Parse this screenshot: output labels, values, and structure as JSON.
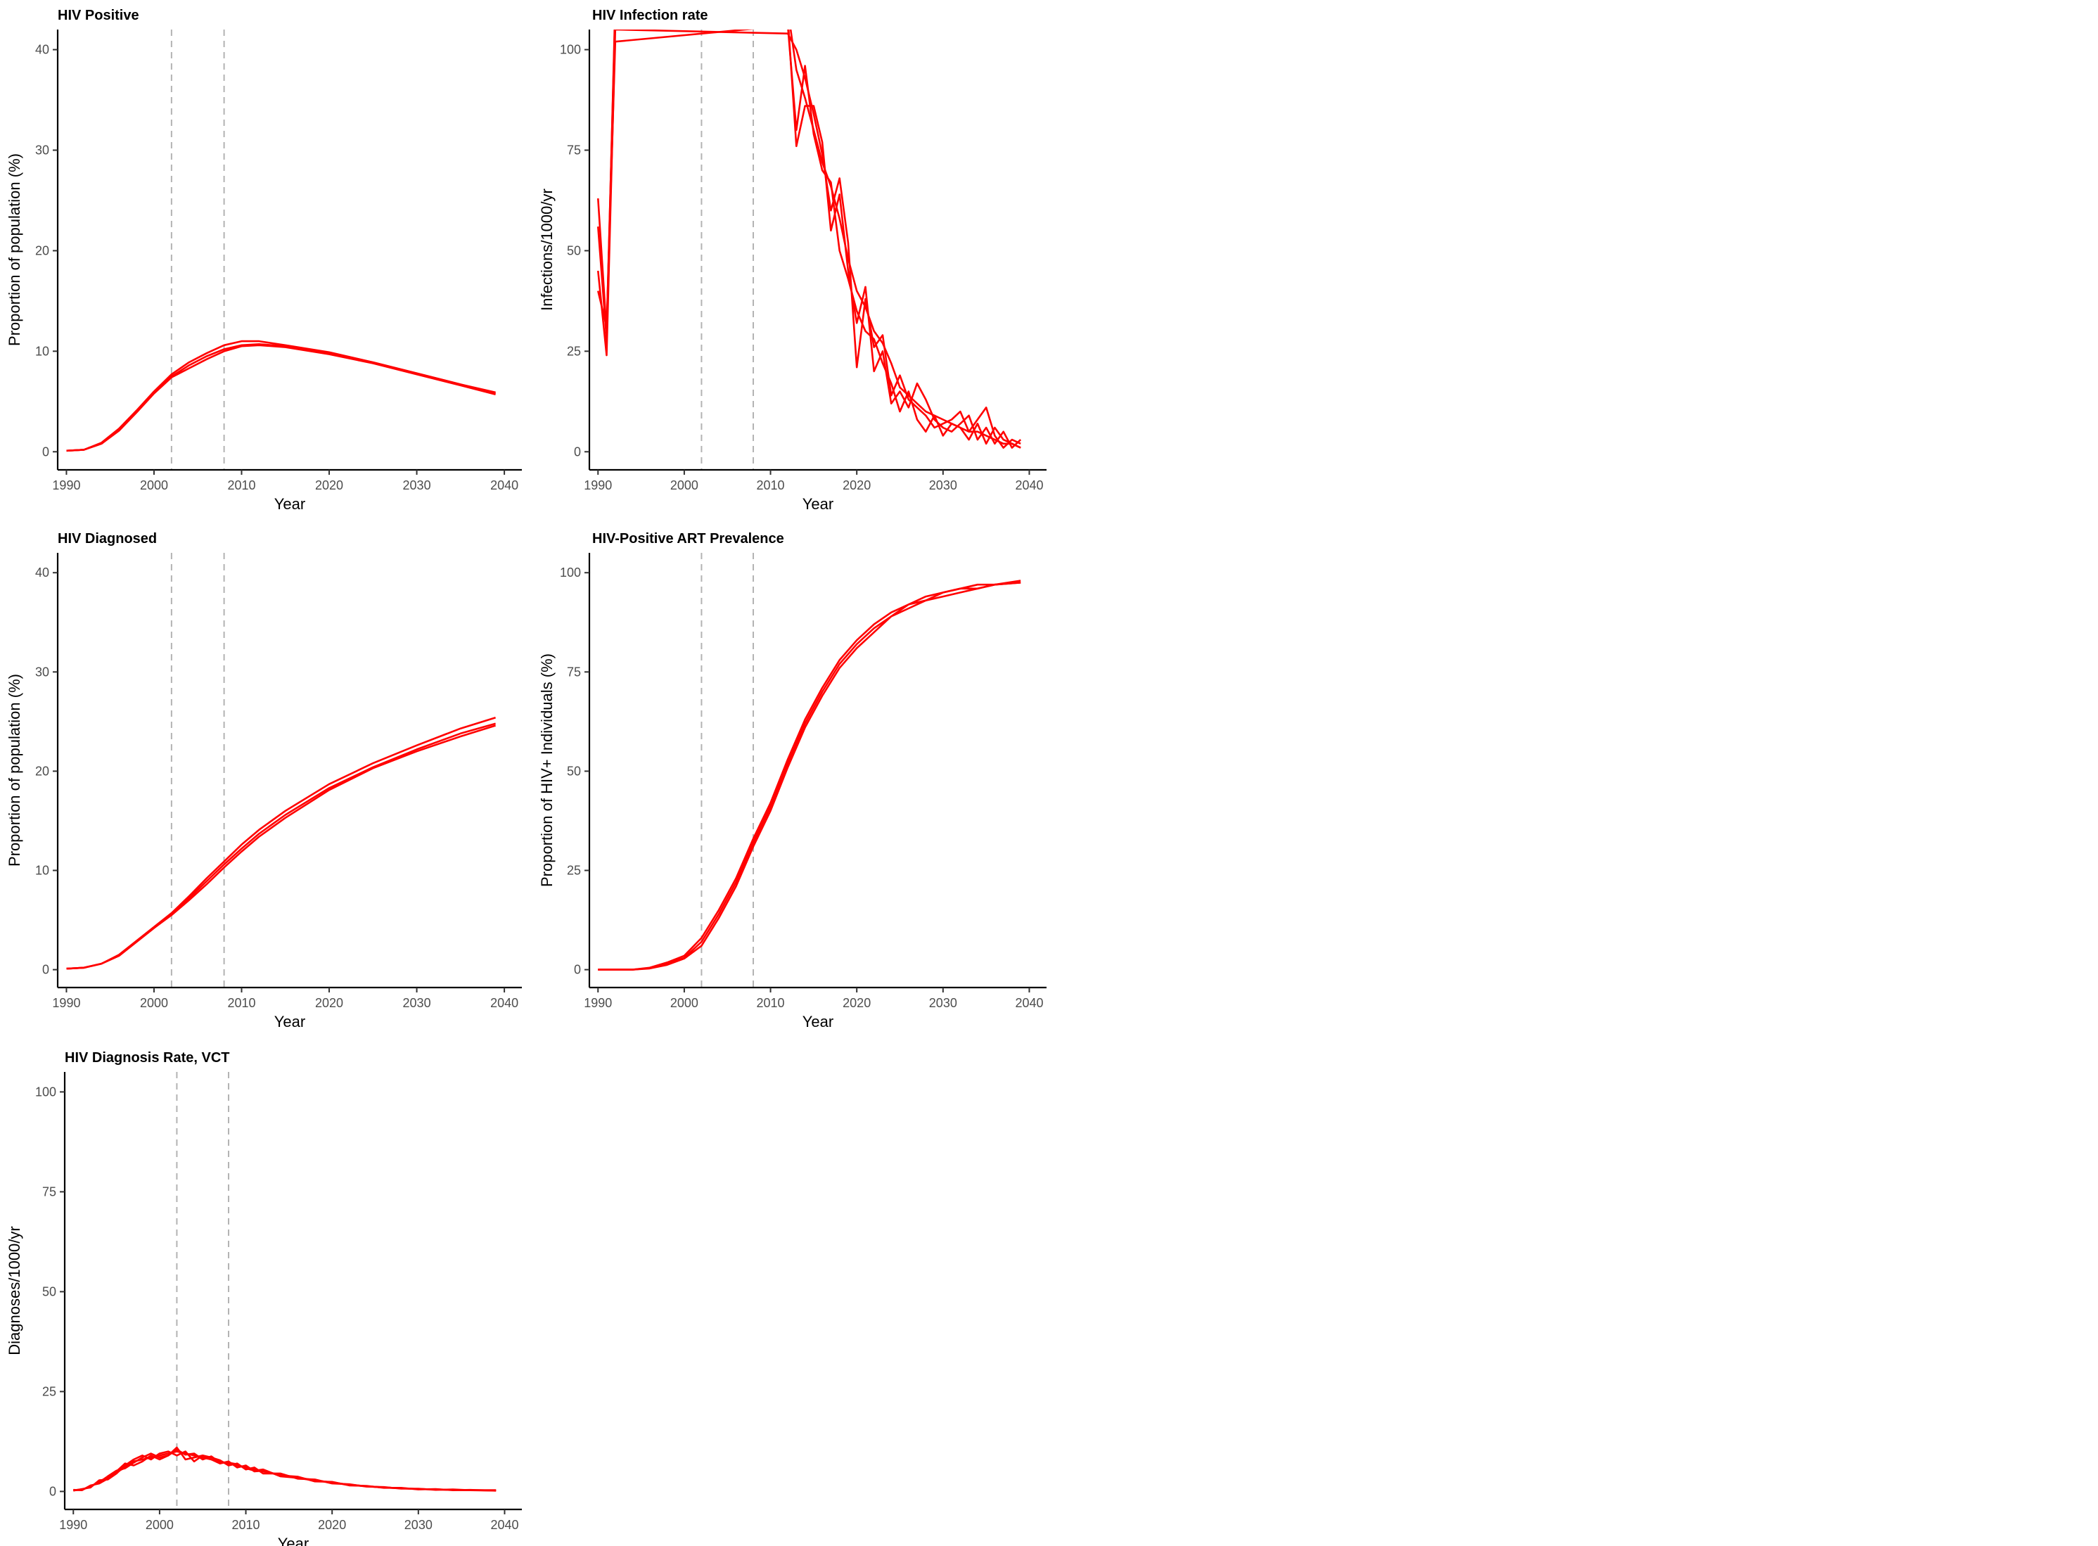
{
  "chart_data": [
    {
      "type": "line",
      "title": "HIV Positive",
      "xlabel": "Year",
      "ylabel": "Proportion of population (%)",
      "xlim": [
        1989,
        2042
      ],
      "ylim": [
        -1.8,
        42
      ],
      "xticks": [
        1990,
        2000,
        2010,
        2020,
        2030,
        2040
      ],
      "yticks": [
        0,
        10,
        20,
        30,
        40
      ],
      "vlines": [
        2002,
        2008
      ],
      "grid": false,
      "series": [
        {
          "x": [
            1990,
            1992,
            1994,
            1996,
            1998,
            2000,
            2002,
            2004,
            2006,
            2008,
            2010,
            2012,
            2015,
            2020,
            2025,
            2030,
            2035,
            2039
          ],
          "y": [
            0.1,
            0.2,
            0.8,
            2.2,
            4.0,
            5.9,
            7.5,
            8.6,
            9.5,
            10.2,
            10.6,
            10.7,
            10.5,
            9.8,
            8.9,
            7.8,
            6.7,
            5.8
          ]
        },
        {
          "x": [
            1990,
            1992,
            1994,
            1996,
            1998,
            2000,
            2002,
            2004,
            2006,
            2008,
            2010,
            2012,
            2015,
            2020,
            2025,
            2030,
            2035,
            2039
          ],
          "y": [
            0.1,
            0.2,
            0.8,
            2.1,
            3.9,
            5.8,
            7.4,
            8.3,
            9.2,
            10.0,
            10.5,
            10.6,
            10.4,
            9.7,
            8.8,
            7.7,
            6.6,
            5.7
          ]
        },
        {
          "x": [
            1990,
            1992,
            1994,
            1996,
            1998,
            2000,
            2002,
            2004,
            2006,
            2008,
            2010,
            2012,
            2015,
            2020,
            2025,
            2030,
            2035,
            2039
          ],
          "y": [
            0.1,
            0.2,
            0.9,
            2.3,
            4.1,
            6.0,
            7.7,
            8.9,
            9.8,
            10.6,
            11.0,
            11.0,
            10.6,
            9.9,
            8.9,
            7.8,
            6.7,
            5.9
          ]
        }
      ]
    },
    {
      "type": "line",
      "title": "HIV Infection rate",
      "xlabel": "Year",
      "ylabel": "Infections/1000/yr",
      "xlim": [
        1989,
        2042
      ],
      "ylim": [
        -4.5,
        105
      ],
      "xticks": [
        1990,
        2000,
        2010,
        2020,
        2030,
        2040
      ],
      "yticks": [
        0,
        25,
        50,
        75,
        100
      ],
      "vlines": [
        2002,
        2008
      ],
      "grid": false,
      "series": [
        {
          "x": [
            1990,
            1991,
            1992,
            2012,
            2013,
            2014,
            2015,
            2016,
            2017,
            2018,
            2019,
            2020,
            2021,
            2022,
            2023,
            2024,
            2025,
            2026,
            2027,
            2028,
            2029,
            2030,
            2031,
            2032,
            2033,
            2034,
            2035,
            2036,
            2037,
            2038,
            2039
          ],
          "y": [
            63,
            30,
            110,
            110,
            95,
            88,
            80,
            72,
            66,
            58,
            48,
            40,
            36,
            30,
            27,
            22,
            16,
            14,
            12,
            10,
            9,
            8,
            7,
            6,
            5,
            5,
            4,
            3,
            2,
            2,
            1
          ]
        },
        {
          "x": [
            1990,
            1991,
            1992,
            2012,
            2013,
            2014,
            2015,
            2016,
            2017,
            2018,
            2019,
            2020,
            2021,
            2022,
            2023,
            2024,
            2025,
            2026,
            2027,
            2028,
            2029,
            2030,
            2031,
            2032,
            2033,
            2034,
            2035,
            2036,
            2037,
            2038,
            2039
          ],
          "y": [
            45,
            24,
            105,
            104,
            100,
            93,
            84,
            74,
            60,
            68,
            52,
            21,
            38,
            26,
            29,
            14,
            19,
            13,
            11,
            9,
            6,
            7,
            8,
            10,
            5,
            8,
            11,
            4,
            1,
            3,
            2
          ]
        },
        {
          "x": [
            1990,
            1991,
            1992,
            2012,
            2013,
            2014,
            2015,
            2016,
            2017,
            2018,
            2019,
            2020,
            2021,
            2022,
            2023,
            2024,
            2025,
            2026,
            2027,
            2028,
            2029,
            2030,
            2031,
            2032,
            2033,
            2034,
            2035,
            2036,
            2037,
            2038,
            2039
          ],
          "y": [
            56,
            28,
            112,
            108,
            76,
            86,
            86,
            77,
            55,
            64,
            45,
            32,
            41,
            20,
            25,
            12,
            15,
            11,
            17,
            13,
            8,
            6,
            5,
            7,
            9,
            3,
            6,
            2,
            5,
            1,
            3
          ]
        },
        {
          "x": [
            1990,
            1991,
            1992,
            2012,
            2013,
            2014,
            2015,
            2016,
            2017,
            2018,
            2019,
            2020,
            2021,
            2022,
            2023,
            2024,
            2025,
            2026,
            2027,
            2028,
            2029,
            2030,
            2031,
            2032,
            2033,
            2034,
            2035,
            2036,
            2037,
            2038,
            2039
          ],
          "y": [
            40,
            31,
            102,
            106,
            80,
            96,
            79,
            70,
            67,
            50,
            43,
            35,
            30,
            28,
            22,
            17,
            10,
            15,
            8,
            5,
            9,
            4,
            7,
            6,
            3,
            7,
            2,
            6,
            3,
            2,
            1
          ]
        }
      ]
    },
    {
      "type": "line",
      "title": "HIV Diagnosed",
      "xlabel": "Year",
      "ylabel": "Proportion of population (%)",
      "xlim": [
        1989,
        2042
      ],
      "ylim": [
        -1.8,
        42
      ],
      "xticks": [
        1990,
        2000,
        2010,
        2020,
        2030,
        2040
      ],
      "yticks": [
        0,
        10,
        20,
        30,
        40
      ],
      "vlines": [
        2002,
        2008
      ],
      "grid": false,
      "series": [
        {
          "x": [
            1990,
            1992,
            1994,
            1996,
            1998,
            2000,
            2002,
            2004,
            2006,
            2008,
            2010,
            2012,
            2015,
            2020,
            2025,
            2030,
            2035,
            2039
          ],
          "y": [
            0.1,
            0.2,
            0.6,
            1.4,
            2.8,
            4.2,
            5.6,
            7.2,
            8.9,
            10.6,
            12.2,
            13.7,
            15.6,
            18.3,
            20.4,
            22.2,
            23.8,
            24.8
          ]
        },
        {
          "x": [
            1990,
            1992,
            1994,
            1996,
            1998,
            2000,
            2002,
            2004,
            2006,
            2008,
            2010,
            2012,
            2015,
            2020,
            2025,
            2030,
            2035,
            2039
          ],
          "y": [
            0.1,
            0.2,
            0.6,
            1.4,
            2.8,
            4.2,
            5.5,
            7.0,
            8.6,
            10.3,
            11.9,
            13.4,
            15.3,
            18.1,
            20.3,
            22.0,
            23.5,
            24.6
          ]
        },
        {
          "x": [
            1990,
            1992,
            1994,
            1996,
            1998,
            2000,
            2002,
            2004,
            2006,
            2008,
            2010,
            2012,
            2015,
            2020,
            2025,
            2030,
            2035,
            2039
          ],
          "y": [
            0.1,
            0.2,
            0.6,
            1.5,
            2.9,
            4.3,
            5.7,
            7.4,
            9.2,
            10.9,
            12.6,
            14.1,
            16.0,
            18.7,
            20.8,
            22.6,
            24.3,
            25.4
          ]
        }
      ]
    },
    {
      "type": "line",
      "title": "HIV-Positive ART Prevalence",
      "xlabel": "Year",
      "ylabel": "Proportion of HIV+ Individuals (%)",
      "xlim": [
        1989,
        2042
      ],
      "ylim": [
        -4.5,
        105
      ],
      "xticks": [
        1990,
        2000,
        2010,
        2020,
        2030,
        2040
      ],
      "yticks": [
        0,
        25,
        50,
        75,
        100
      ],
      "vlines": [
        2002,
        2008
      ],
      "grid": false,
      "series": [
        {
          "x": [
            1990,
            1994,
            1996,
            1998,
            2000,
            2002,
            2004,
            2006,
            2008,
            2010,
            2012,
            2014,
            2016,
            2018,
            2020,
            2022,
            2024,
            2026,
            2028,
            2030,
            2032,
            2034,
            2036,
            2039
          ],
          "y": [
            0,
            0,
            0.4,
            1.5,
            3,
            7,
            14,
            22,
            32,
            41,
            52,
            62,
            70,
            77,
            82,
            86,
            89,
            92,
            93,
            95,
            96,
            96,
            97,
            97.5
          ]
        },
        {
          "x": [
            1990,
            1994,
            1996,
            1998,
            2000,
            2002,
            2004,
            2006,
            2008,
            2010,
            2012,
            2014,
            2016,
            2018,
            2020,
            2022,
            2024,
            2026,
            2028,
            2030,
            2032,
            2034,
            2036,
            2039
          ],
          "y": [
            0,
            0,
            0.5,
            1.8,
            3.5,
            8,
            15,
            23,
            33,
            42,
            53,
            63,
            71,
            78,
            83,
            87,
            90,
            92,
            94,
            95,
            96,
            97,
            97,
            98
          ]
        },
        {
          "x": [
            1990,
            1994,
            1996,
            1998,
            2000,
            2002,
            2004,
            2006,
            2008,
            2010,
            2012,
            2014,
            2016,
            2018,
            2020,
            2022,
            2024,
            2026,
            2028,
            2030,
            2032,
            2034,
            2036,
            2039
          ],
          "y": [
            0,
            0,
            0.3,
            1.2,
            2.8,
            6,
            13,
            21,
            31,
            40,
            51,
            61,
            69,
            76,
            81,
            85,
            89,
            91,
            93,
            94,
            95,
            96,
            97,
            97.5
          ]
        }
      ]
    },
    {
      "type": "line",
      "title": "HIV Diagnosis Rate, VCT",
      "xlabel": "Year",
      "ylabel": "Diagnoses/1000/yr",
      "xlim": [
        1989,
        2042
      ],
      "ylim": [
        -4.5,
        105
      ],
      "xticks": [
        1990,
        2000,
        2010,
        2020,
        2030,
        2040
      ],
      "yticks": [
        0,
        25,
        50,
        75,
        100
      ],
      "vlines": [
        2002,
        2008
      ],
      "grid": false,
      "series": [
        {
          "x": [
            1990,
            1991,
            1992,
            1993,
            1994,
            1995,
            1996,
            1997,
            1998,
            1999,
            2000,
            2001,
            2002,
            2003,
            2004,
            2005,
            2006,
            2007,
            2008,
            2009,
            2010,
            2011,
            2012,
            2014,
            2016,
            2018,
            2020,
            2022,
            2024,
            2026,
            2028,
            2030,
            2032,
            2034,
            2036,
            2039
          ],
          "y": [
            0.3,
            0.5,
            1.2,
            2.5,
            3.5,
            4.8,
            6,
            7.5,
            8,
            8.5,
            9,
            9.5,
            10,
            9.5,
            9,
            8.5,
            8,
            7.5,
            7,
            6.5,
            6,
            5.5,
            5,
            4.2,
            3.5,
            2.8,
            2.2,
            1.7,
            1.3,
            1,
            0.8,
            0.6,
            0.5,
            0.4,
            0.3,
            0.3
          ]
        },
        {
          "x": [
            1990,
            1991,
            1992,
            1993,
            1994,
            1995,
            1996,
            1997,
            1998,
            1999,
            2000,
            2001,
            2002,
            2003,
            2004,
            2005,
            2006,
            2007,
            2008,
            2009,
            2010,
            2011,
            2012,
            2014,
            2016,
            2018,
            2020,
            2022,
            2024,
            2026,
            2028,
            2030,
            2032,
            2034,
            2036,
            2039
          ],
          "y": [
            0.4,
            0.3,
            1.5,
            2,
            3.2,
            5,
            7,
            6.5,
            7.5,
            9,
            8,
            9,
            11,
            8,
            8.5,
            9,
            8,
            7,
            7.5,
            6,
            6.5,
            5,
            5.2,
            4,
            3.7,
            2.5,
            2.4,
            1.5,
            1.4,
            0.9,
            0.9,
            0.5,
            0.6,
            0.3,
            0.4,
            0.2
          ]
        },
        {
          "x": [
            1990,
            1991,
            1992,
            1993,
            1994,
            1995,
            1996,
            1997,
            1998,
            1999,
            2000,
            2001,
            2002,
            2003,
            2004,
            2005,
            2006,
            2007,
            2008,
            2009,
            2010,
            2011,
            2012,
            2014,
            2016,
            2018,
            2020,
            2022,
            2024,
            2026,
            2028,
            2030,
            2032,
            2034,
            2036,
            2039
          ],
          "y": [
            0.2,
            0.6,
            1,
            2.8,
            3,
            4.5,
            6.5,
            8,
            9,
            8,
            9.5,
            10,
            9,
            10,
            7.5,
            9,
            8.5,
            7.8,
            6.5,
            7,
            5.5,
            6,
            4.5,
            4.5,
            3.2,
            3,
            2,
            1.8,
            1.2,
            1.1,
            0.7,
            0.7,
            0.4,
            0.5,
            0.3,
            0.3
          ]
        },
        {
          "x": [
            1990,
            1991,
            1992,
            1993,
            1994,
            1995,
            1996,
            1997,
            1998,
            1999,
            2000,
            2001,
            2002,
            2003,
            2004,
            2005,
            2006,
            2007,
            2008,
            2009,
            2010,
            2011,
            2012,
            2014,
            2016,
            2018,
            2020,
            2022,
            2024,
            2026,
            2028,
            2030,
            2032,
            2034,
            2036,
            2039
          ],
          "y": [
            0.3,
            0.4,
            1.3,
            2.3,
            3.8,
            5.2,
            5.8,
            7.2,
            8.5,
            9.5,
            8.5,
            9,
            10.5,
            9.2,
            9.5,
            8,
            8.8,
            7.2,
            7.2,
            6.8,
            5.8,
            5.2,
            5.5,
            3.8,
            3.4,
            2.7,
            2.3,
            1.6,
            1.3,
            1,
            0.8,
            0.6,
            0.5,
            0.4,
            0.3,
            0.2
          ]
        }
      ]
    }
  ]
}
